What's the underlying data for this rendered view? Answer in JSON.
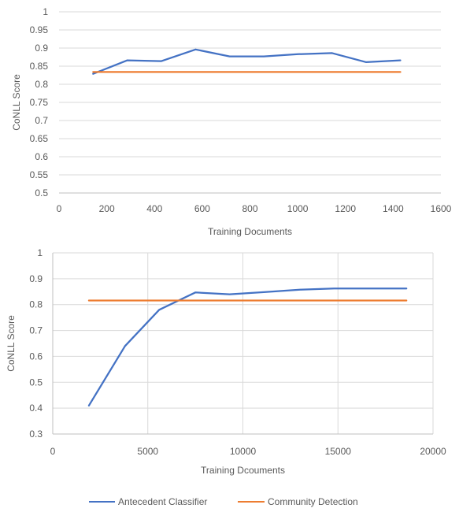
{
  "chart_data": [
    {
      "type": "line",
      "xlabel": "Training Documents",
      "ylabel": "CoNLL Score",
      "xlim": [
        0,
        1600
      ],
      "ylim": [
        0.5,
        1
      ],
      "xticks": [
        0,
        200,
        400,
        600,
        800,
        1000,
        1200,
        1400,
        1600
      ],
      "xtick_labels": [
        "0",
        "200",
        "400",
        "600",
        "800",
        "1000",
        "1200",
        "1400",
        "1600"
      ],
      "yticks": [
        0.5,
        0.55,
        0.6,
        0.65,
        0.7,
        0.75,
        0.8,
        0.85,
        0.9,
        0.95,
        1
      ],
      "ytick_labels": [
        "0.5",
        "0.55",
        "0.6",
        "0.65",
        "0.7",
        "0.75",
        "0.8",
        "0.85",
        "0.9",
        "0.95",
        "1"
      ],
      "grid": "horizontal",
      "series": [
        {
          "name": "Antecedent Classifier",
          "color": "#4472c4",
          "x": [
            143,
            286,
            429,
            572,
            715,
            858,
            1001,
            1144,
            1287,
            1430
          ],
          "y": [
            0.829,
            0.866,
            0.864,
            0.896,
            0.877,
            0.877,
            0.883,
            0.886,
            0.861,
            0.866
          ]
        },
        {
          "name": "Community Detection",
          "color": "#ed7d31",
          "x": [
            143,
            1430
          ],
          "y": [
            0.834,
            0.834
          ]
        }
      ]
    },
    {
      "type": "line",
      "xlabel": "Training Dcouments",
      "ylabel": "CoNLL Score",
      "xlim": [
        0,
        20000
      ],
      "ylim": [
        0.3,
        1
      ],
      "xticks": [
        0,
        5000,
        10000,
        15000,
        20000
      ],
      "xtick_labels": [
        "0",
        "5000",
        "10000",
        "15000",
        "20000"
      ],
      "yticks": [
        0.3,
        0.4,
        0.5,
        0.6,
        0.7,
        0.8,
        0.9,
        1
      ],
      "ytick_labels": [
        "0.3",
        "0.4",
        "0.5",
        "0.6",
        "0.7",
        "0.8",
        "0.9",
        "1"
      ],
      "grid": "both",
      "series": [
        {
          "name": "Antecedent Classifier",
          "color": "#4472c4",
          "x": [
            1900,
            3800,
            5600,
            7500,
            9300,
            11100,
            13000,
            14800,
            16700,
            18600
          ],
          "y": [
            0.41,
            0.64,
            0.78,
            0.847,
            0.84,
            0.848,
            0.858,
            0.862,
            0.862,
            0.862
          ]
        },
        {
          "name": "Community Detection",
          "color": "#ed7d31",
          "x": [
            1900,
            18600
          ],
          "y": [
            0.816,
            0.816
          ]
        }
      ]
    }
  ],
  "legend": {
    "position": "bottom",
    "entries": [
      {
        "label": "Antecedent Classifier",
        "color": "#4472c4"
      },
      {
        "label": "Community Detection",
        "color": "#ed7d31"
      }
    ]
  }
}
